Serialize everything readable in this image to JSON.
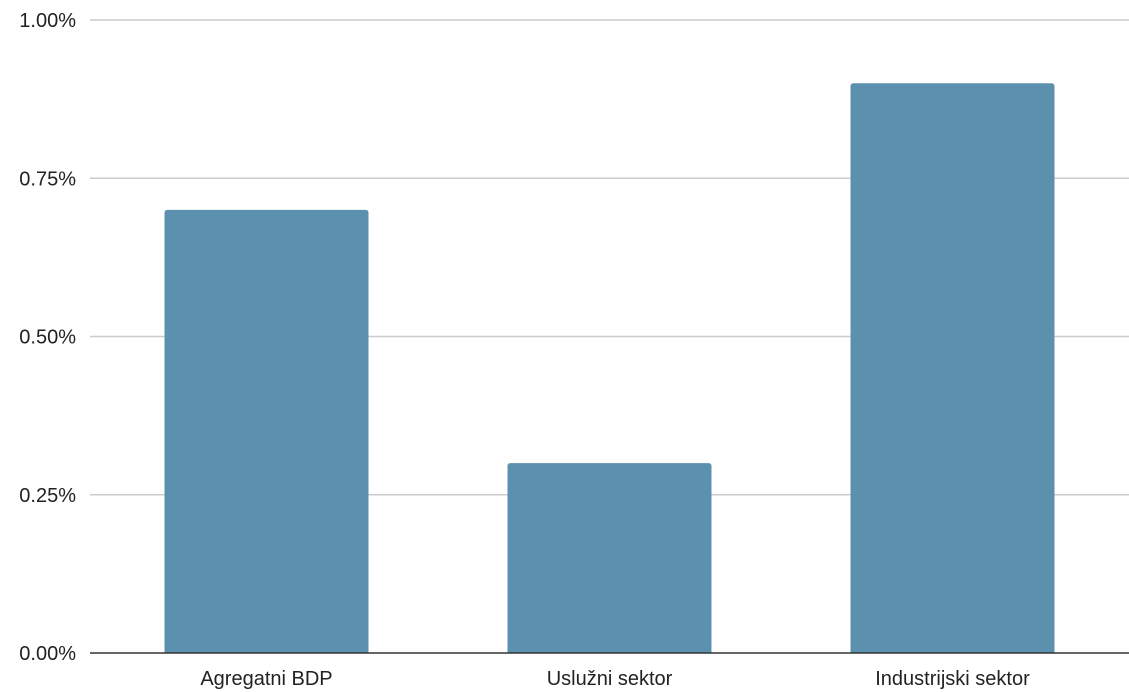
{
  "chart_data": {
    "type": "bar",
    "categories": [
      "Agregatni BDP",
      "Uslužni sektor",
      "Industrijski sektor"
    ],
    "series": [
      {
        "values": [
          0.7,
          0.3,
          0.9
        ]
      }
    ],
    "yticks": [
      0,
      0.25,
      0.5,
      0.75,
      1.0
    ],
    "ytick_labels": [
      "0.00%",
      "0.25%",
      "0.50%",
      "0.75%",
      "1.00%"
    ],
    "ylim": [
      0,
      1.0
    ],
    "grid": true,
    "bar_color": "#5b91ae",
    "grid_color": "#cccccc",
    "axis_color": "#333333",
    "legend": "none"
  }
}
